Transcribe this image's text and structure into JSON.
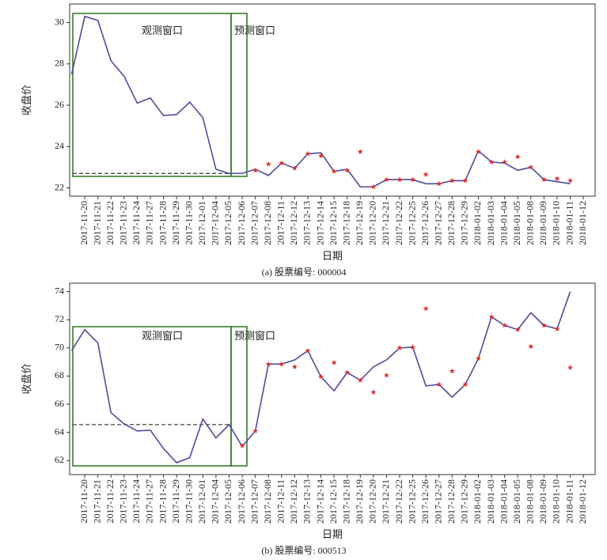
{
  "chart_data": [
    {
      "type": "line",
      "caption": "(a)  股票编号: 000004",
      "xlabel": "日期",
      "ylabel": "收盘价",
      "annotations": [
        "观测窗口",
        "预测窗口"
      ],
      "hline": 22.7,
      "hline_color": "#333333",
      "box_color": "#3a7d2c",
      "categories": [
        null,
        "2017-11-20",
        "2017-11-21",
        "2017-11-22",
        "2017-11-23",
        "2017-11-24",
        "2017-11-27",
        "2017-11-28",
        "2017-11-29",
        "2017-11-30",
        "2017-12-01",
        "2017-12-04",
        "2017-12-05",
        "2017-12-06",
        "2017-12-07",
        "2017-12-08",
        "2017-12-11",
        "2017-12-12",
        "2017-12-13",
        "2017-12-14",
        "2017-12-15",
        "2017-12-18",
        "2017-12-19",
        "2017-12-20",
        "2017-12-21",
        "2017-12-22",
        "2017-12-25",
        "2017-12-26",
        "2017-12-27",
        "2017-12-28",
        "2017-12-29",
        "2018-01-02",
        "2018-01-03",
        "2018-01-04",
        "2018-01-05",
        "2018-01-08",
        "2018-01-09",
        "2018-01-10",
        "2018-01-11",
        "2018-01-12"
      ],
      "series": [
        {
          "style": "line",
          "color": "#4c4c9c",
          "values": [
            27.5,
            30.3,
            30.1,
            28.15,
            27.4,
            26.1,
            26.35,
            25.5,
            25.55,
            26.15,
            25.4,
            22.9,
            22.7,
            22.7,
            22.9,
            22.6,
            23.2,
            22.95,
            23.65,
            23.7,
            22.8,
            22.9,
            22.05,
            22.05,
            22.4,
            22.4,
            22.4,
            22.2,
            22.2,
            22.35,
            22.35,
            23.8,
            23.25,
            23.2,
            22.85,
            23.0,
            22.4,
            22.3,
            22.2,
            null
          ]
        },
        {
          "style": "star",
          "color": "#e03030",
          "values": [
            null,
            null,
            null,
            null,
            null,
            null,
            null,
            null,
            null,
            null,
            null,
            null,
            null,
            null,
            22.85,
            23.15,
            23.2,
            22.95,
            23.65,
            23.55,
            22.8,
            22.85,
            23.75,
            22.05,
            22.4,
            22.4,
            22.4,
            22.65,
            22.2,
            22.35,
            22.35,
            23.75,
            23.25,
            23.25,
            23.5,
            23.0,
            22.4,
            22.45,
            22.35,
            null
          ]
        }
      ],
      "ylim": [
        21.6,
        30.9
      ],
      "yticks": [
        22,
        24,
        26,
        28,
        30
      ]
    },
    {
      "type": "line",
      "caption": "(b)  股票编号: 000513",
      "xlabel": "日期",
      "ylabel": "收盘价",
      "annotations": [
        "观测窗口",
        "预测窗口"
      ],
      "hline": 64.55,
      "hline_color": "#333333",
      "box_color": "#3a7d2c",
      "categories": [
        null,
        "2017-11-20",
        "2017-11-21",
        "2017-11-22",
        "2017-11-23",
        "2017-11-24",
        "2017-11-27",
        "2017-11-28",
        "2017-11-29",
        "2017-11-30",
        "2017-12-01",
        "2017-12-04",
        "2017-12-05",
        "2017-12-06",
        "2017-12-07",
        "2017-12-08",
        "2017-12-11",
        "2017-12-12",
        "2017-12-13",
        "2017-12-14",
        "2017-12-15",
        "2017-12-18",
        "2017-12-19",
        "2017-12-20",
        "2017-12-21",
        "2017-12-22",
        "2017-12-25",
        "2017-12-26",
        "2017-12-27",
        "2017-12-28",
        "2017-12-29",
        "2018-01-02",
        "2018-01-03",
        "2018-01-04",
        "2018-01-05",
        "2018-01-08",
        "2018-01-09",
        "2018-01-10",
        "2018-01-11",
        "2018-01-12"
      ],
      "series": [
        {
          "style": "line",
          "color": "#4c4c9c",
          "values": [
            69.8,
            71.3,
            70.35,
            65.4,
            64.6,
            64.1,
            64.15,
            62.85,
            61.85,
            62.2,
            64.95,
            63.6,
            64.55,
            63.0,
            64.1,
            68.85,
            68.85,
            69.15,
            69.8,
            67.95,
            66.95,
            68.25,
            67.7,
            68.65,
            69.15,
            70.0,
            70.05,
            67.3,
            67.4,
            66.5,
            67.4,
            69.25,
            72.2,
            71.6,
            71.3,
            72.5,
            71.6,
            71.35,
            74.0,
            null
          ]
        },
        {
          "style": "star",
          "color": "#e03030",
          "values": [
            null,
            null,
            null,
            null,
            null,
            null,
            null,
            null,
            null,
            null,
            null,
            null,
            null,
            63.05,
            64.1,
            68.85,
            68.85,
            68.65,
            69.8,
            67.95,
            68.95,
            68.25,
            67.7,
            66.85,
            68.05,
            70.0,
            70.05,
            72.8,
            67.4,
            68.35,
            67.4,
            69.25,
            72.2,
            71.6,
            71.3,
            70.1,
            71.6,
            71.35,
            68.6,
            null
          ]
        }
      ],
      "ylim": [
        61.0,
        74.6
      ],
      "yticks": [
        62,
        64,
        66,
        68,
        70,
        72,
        74
      ]
    }
  ]
}
